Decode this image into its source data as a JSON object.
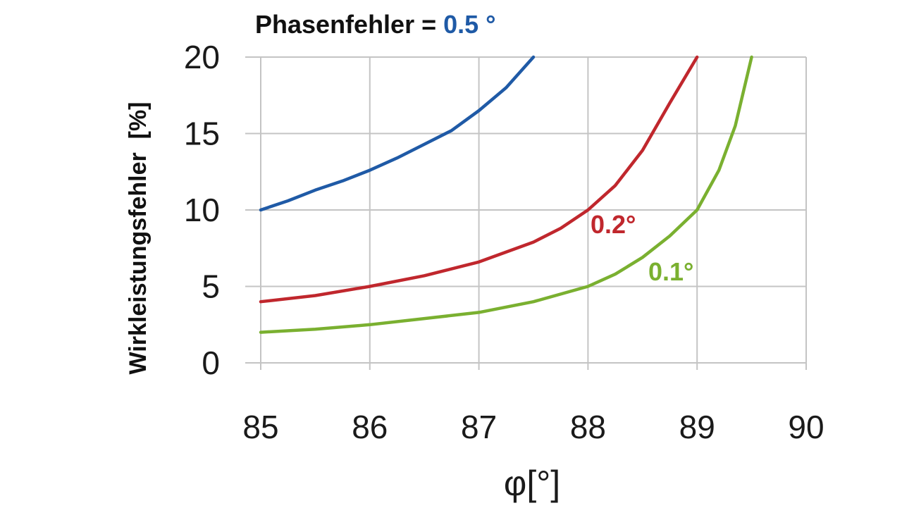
{
  "chart_data": {
    "type": "line",
    "title": {
      "prefix": "Phasenfehler = ",
      "value": "0.5 °",
      "value_color": "#1f5aa6"
    },
    "xlabel": "φ[°]",
    "ylabel": "Wirkleistungsfehler  [%]",
    "xlim": [
      85,
      90
    ],
    "ylim": [
      0,
      20
    ],
    "x_ticks": [
      "85",
      "86",
      "87",
      "88",
      "89",
      "90"
    ],
    "y_ticks": [
      "0",
      "5",
      "10",
      "15",
      "20"
    ],
    "grid": true,
    "series": [
      {
        "label": "",
        "color": "#1f5aa6",
        "x": [
          85,
          85.25,
          85.5,
          85.75,
          86,
          86.25,
          86.5,
          86.75,
          87,
          87.25,
          87.5
        ],
        "y": [
          10.0,
          10.6,
          11.3,
          11.9,
          12.6,
          13.4,
          14.3,
          15.2,
          16.5,
          18.0,
          20.0
        ]
      },
      {
        "label": "0.2°",
        "color": "#c0272d",
        "x": [
          85,
          85.5,
          86,
          86.5,
          87,
          87.5,
          87.75,
          88,
          88.25,
          88.5,
          88.75,
          89
        ],
        "y": [
          4.0,
          4.4,
          5.0,
          5.7,
          6.6,
          7.9,
          8.8,
          10.0,
          11.6,
          13.9,
          17.0,
          20.0
        ]
      },
      {
        "label": "0.1°",
        "color": "#7ab030",
        "x": [
          85,
          85.5,
          86,
          86.5,
          87,
          87.5,
          88,
          88.25,
          88.5,
          88.75,
          89,
          89.2,
          89.35,
          89.5
        ],
        "y": [
          2.0,
          2.2,
          2.5,
          2.9,
          3.3,
          4.0,
          5.0,
          5.8,
          6.9,
          8.3,
          10.0,
          12.6,
          15.5,
          20.0
        ]
      }
    ]
  }
}
